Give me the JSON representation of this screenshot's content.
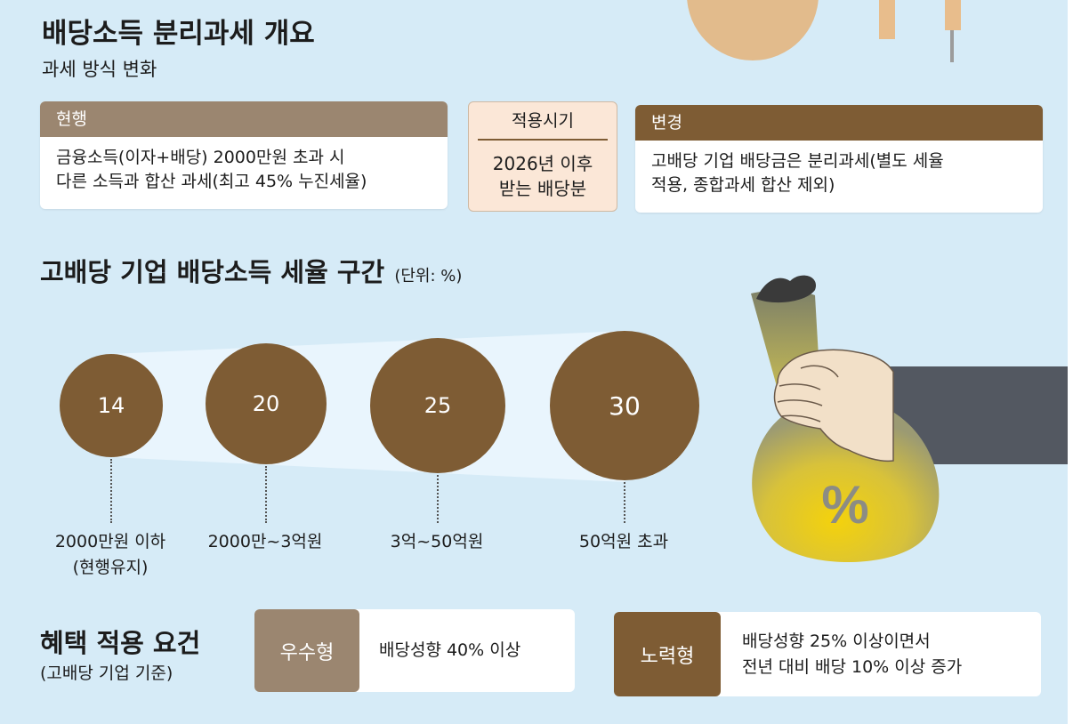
{
  "header": {
    "title": "배당소득 분리과세 개요",
    "subtitle": "과세 방식 변화"
  },
  "current": {
    "heading": "현행",
    "line1": "금융소득(이자+배당) 2000만원 초과 시",
    "line2": "다른 소득과 합산 과세(최고 45% 누진세율)"
  },
  "timing": {
    "heading": "적용시기",
    "line1": "2026년 이후",
    "line2": "받는 배당분"
  },
  "change": {
    "heading": "변경",
    "line1": "고배당 기업 배당금은 분리과세(별도 세율",
    "line2": "적용, 종합과세 합산 제외)"
  },
  "brackets": {
    "title": "고배당 기업 배당소득 세율 구간",
    "unit": "(단위: %)",
    "items": [
      {
        "rate": "14",
        "label1": "2000만원 이하",
        "label2": "(현행유지)"
      },
      {
        "rate": "20",
        "label1": "2000만~3억원",
        "label2": ""
      },
      {
        "rate": "25",
        "label1": "3억~50억원",
        "label2": ""
      },
      {
        "rate": "30",
        "label1": "50억원 초과",
        "label2": ""
      }
    ]
  },
  "illustration": {
    "bag_symbol": "%"
  },
  "benefits": {
    "title": "혜택 적용 요건",
    "subtitle": "(고배당 기업 기준)",
    "conditions": [
      {
        "type": "우수형",
        "line1": "배당성향 40% 이상",
        "line2": ""
      },
      {
        "type": "노력형",
        "line1": "배당성향 25% 이상이면서",
        "line2": "전년 대비 배당 10% 이상 증가"
      }
    ]
  },
  "colors": {
    "background": "#d6ebf7",
    "current_header": "#9b8670",
    "change_header": "#7e5c34",
    "circle": "#7e5c34",
    "timing_box": "#fbe7d7",
    "bag": "#e8c727"
  }
}
